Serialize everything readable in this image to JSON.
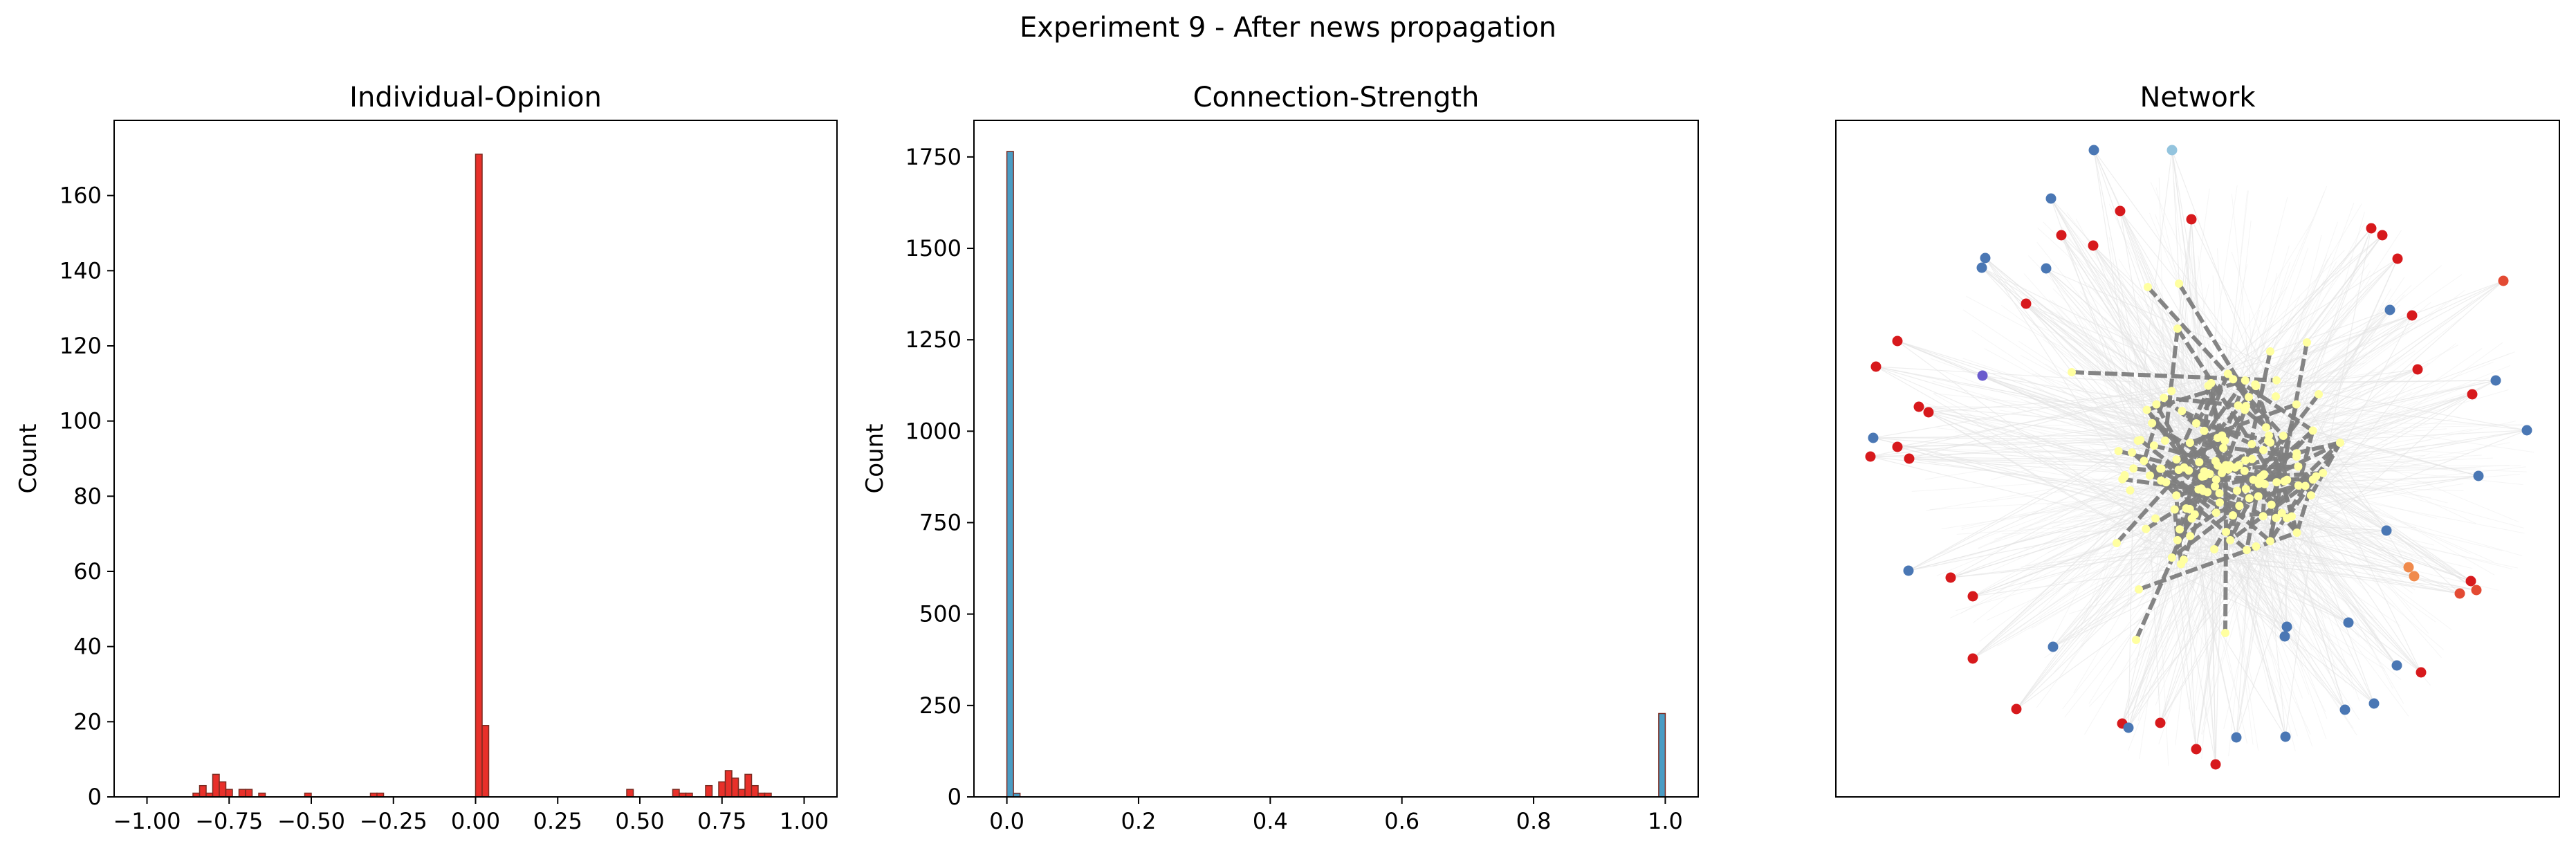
{
  "suptitle": "Experiment 9 - After news propagation",
  "colors": {
    "opinion_bar": "#e8302a",
    "strength_bar": "#4a9cc4",
    "bar_edge": "#7a2a20",
    "strong_edge": "#7f7f7f",
    "weak_edge": "#e4e4e4",
    "core_node": "#ffffa0"
  },
  "chart_data": [
    {
      "type": "bar",
      "title": "Individual-Opinion",
      "ylabel": "Count",
      "xlim": [
        -1.1,
        1.1
      ],
      "ylim": [
        0,
        180
      ],
      "xticks": [
        -1.0,
        -0.75,
        -0.5,
        -0.25,
        0.0,
        0.25,
        0.5,
        0.75,
        1.0
      ],
      "xtick_labels": [
        "−1.00",
        "−0.75",
        "−0.50",
        "−0.25",
        "0.00",
        "0.25",
        "0.50",
        "0.75",
        "1.00"
      ],
      "yticks": [
        0,
        20,
        40,
        60,
        80,
        100,
        120,
        140,
        160
      ],
      "yticks_labels": [
        "0",
        "20",
        "40",
        "60",
        "80",
        "100",
        "120",
        "140",
        "160"
      ],
      "bin_width": 0.02,
      "bins": [
        {
          "x": -0.86,
          "count": 1
        },
        {
          "x": -0.84,
          "count": 3
        },
        {
          "x": -0.82,
          "count": 1
        },
        {
          "x": -0.8,
          "count": 6
        },
        {
          "x": -0.78,
          "count": 4
        },
        {
          "x": -0.76,
          "count": 2
        },
        {
          "x": -0.72,
          "count": 2
        },
        {
          "x": -0.7,
          "count": 2
        },
        {
          "x": -0.66,
          "count": 1
        },
        {
          "x": -0.52,
          "count": 1
        },
        {
          "x": -0.32,
          "count": 1
        },
        {
          "x": -0.3,
          "count": 1
        },
        {
          "x": 0.0,
          "count": 171
        },
        {
          "x": 0.02,
          "count": 19
        },
        {
          "x": 0.46,
          "count": 2
        },
        {
          "x": 0.6,
          "count": 2
        },
        {
          "x": 0.62,
          "count": 1
        },
        {
          "x": 0.64,
          "count": 1
        },
        {
          "x": 0.7,
          "count": 3
        },
        {
          "x": 0.74,
          "count": 4
        },
        {
          "x": 0.76,
          "count": 7
        },
        {
          "x": 0.78,
          "count": 5
        },
        {
          "x": 0.8,
          "count": 2
        },
        {
          "x": 0.82,
          "count": 6
        },
        {
          "x": 0.84,
          "count": 3
        },
        {
          "x": 0.86,
          "count": 1
        },
        {
          "x": 0.88,
          "count": 1
        }
      ]
    },
    {
      "type": "bar",
      "title": "Connection-Strength",
      "ylabel": "Count",
      "xlim": [
        -0.05,
        1.05
      ],
      "ylim": [
        0,
        1850
      ],
      "xticks": [
        0.0,
        0.2,
        0.4,
        0.6,
        0.8,
        1.0
      ],
      "xtick_labels": [
        "0.0",
        "0.2",
        "0.4",
        "0.6",
        "0.8",
        "1.0"
      ],
      "yticks": [
        0,
        250,
        500,
        750,
        1000,
        1250,
        1500,
        1750
      ],
      "yticks_labels": [
        "0",
        "250",
        "500",
        "750",
        "1000",
        "1250",
        "1500",
        "1750"
      ],
      "bin_width": 0.01,
      "bins": [
        {
          "x": 0.0,
          "count": 1765
        },
        {
          "x": 0.01,
          "count": 10
        },
        {
          "x": 0.99,
          "count": 228
        }
      ]
    },
    {
      "type": "network",
      "title": "Network",
      "core_node_count": 130
    }
  ]
}
